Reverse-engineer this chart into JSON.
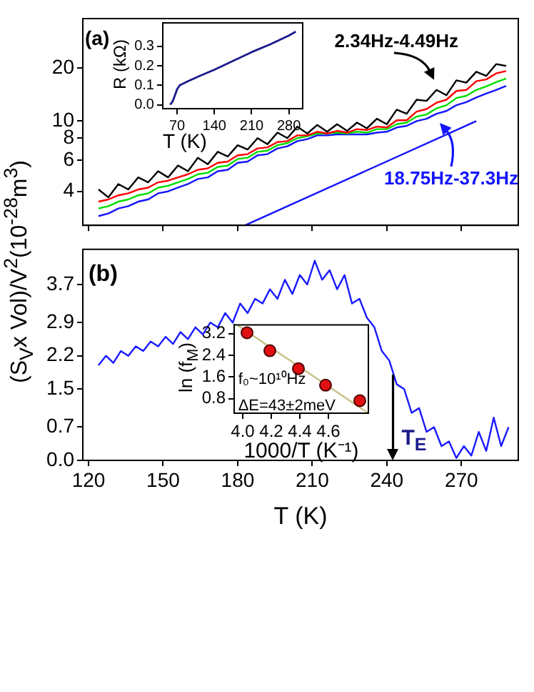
{
  "chart_data": [
    {
      "type": "line",
      "ylabel": "(S$_{V}$x Vol)/V$^{2}$(10$^{-28}$m$^{3}$)",
      "annotations": [
        "(a)"
      ],
      "xlim": [
        117.7,
        292.9
      ],
      "xticks": [
        120,
        150,
        180,
        210,
        240,
        270
      ],
      "ylim": [
        2.57,
        38
      ],
      "yticks": [
        4,
        6,
        8,
        10,
        20
      ],
      "log": "y",
      "tick_labels": "y",
      "x": [
        124,
        128,
        132,
        136,
        140,
        144,
        148,
        152,
        156,
        160,
        164,
        168,
        172,
        176,
        180,
        184,
        188,
        192,
        196,
        200,
        204,
        208,
        212,
        216,
        220,
        224,
        228,
        232,
        236,
        240,
        244,
        248,
        252,
        256,
        260,
        264,
        268,
        272,
        276,
        280,
        284,
        288
      ],
      "series": [
        {
          "name": "2.34Hz-4.49Hz",
          "color": "#000000",
          "values": [
            4.1,
            3.7,
            4.4,
            4.1,
            4.8,
            4.5,
            5.2,
            4.8,
            5.6,
            5.2,
            6.2,
            5.7,
            6.7,
            6.3,
            7.3,
            6.9,
            8.0,
            7.4,
            8.6,
            8.0,
            9.3,
            8.5,
            9.5,
            8.7,
            9.6,
            8.8,
            9.8,
            9.1,
            10.3,
            9.6,
            11.6,
            11.0,
            13.2,
            13.0,
            15.0,
            14.0,
            17.0,
            16.5,
            19.0,
            18.0,
            21.0,
            20.5
          ]
        },
        {
          "color": "#ff0000",
          "values": [
            3.5,
            3.6,
            3.8,
            3.9,
            4.1,
            4.2,
            4.5,
            4.6,
            4.8,
            5.0,
            5.3,
            5.4,
            5.8,
            5.9,
            6.4,
            6.5,
            7.0,
            7.1,
            7.6,
            7.7,
            8.3,
            8.3,
            8.7,
            8.5,
            8.8,
            8.6,
            9.0,
            8.9,
            9.3,
            9.2,
            10.1,
            10.1,
            11.3,
            11.7,
            12.7,
            13.2,
            14.8,
            15.0,
            16.8,
            17.2,
            18.6,
            19.2
          ]
        },
        {
          "color": "#00dd00",
          "values": [
            3.2,
            3.3,
            3.5,
            3.6,
            3.8,
            3.9,
            4.2,
            4.3,
            4.5,
            4.7,
            5.0,
            5.1,
            5.5,
            5.6,
            6.1,
            6.2,
            6.7,
            6.8,
            7.3,
            7.5,
            8.0,
            8.2,
            8.5,
            8.5,
            8.6,
            8.5,
            8.7,
            8.6,
            9.0,
            9.0,
            9.6,
            9.8,
            10.6,
            10.9,
            11.8,
            12.3,
            13.5,
            13.9,
            15.0,
            15.7,
            16.6,
            17.4
          ]
        },
        {
          "name": "18.75Hz-37.3Hz",
          "color": "#1414ff",
          "values": [
            2.9,
            3.0,
            3.2,
            3.3,
            3.5,
            3.6,
            3.9,
            4.0,
            4.2,
            4.4,
            4.7,
            4.8,
            5.2,
            5.3,
            5.8,
            5.9,
            6.4,
            6.5,
            7.0,
            7.2,
            7.7,
            7.9,
            8.3,
            8.3,
            8.4,
            8.4,
            8.4,
            8.4,
            8.6,
            8.7,
            9.2,
            9.4,
            10.0,
            10.3,
            11.0,
            11.4,
            12.3,
            12.8,
            13.6,
            14.3,
            15.0,
            15.8
          ]
        },
        {
          "color": "#1414ff",
          "x": [
            183,
            276
          ],
          "values": [
            2.57,
            10
          ]
        }
      ]
    },
    {
      "type": "line",
      "xlabel": "T (K)",
      "ylabel": "R (kΩ)",
      "xlim": [
        43,
        306
      ],
      "xticks": [
        70,
        140,
        210,
        280
      ],
      "ylim": [
        -0.02,
        0.42
      ],
      "yticks": [
        {
          "value": 0,
          "label": "0.0"
        },
        {
          "value": 0.1,
          "label": "0.1"
        },
        {
          "value": 0.2,
          "label": "0.2"
        },
        {
          "value": 0.3,
          "label": "0.3"
        }
      ],
      "x": [
        57,
        62,
        66,
        70,
        75,
        90,
        110,
        140,
        175,
        210,
        245,
        280,
        293
      ],
      "series": [
        {
          "color": "#1a1a8c",
          "values": [
            0,
            0.02,
            0.05,
            0.08,
            0.1,
            0.12,
            0.145,
            0.18,
            0.225,
            0.27,
            0.31,
            0.355,
            0.375
          ]
        }
      ]
    },
    {
      "type": "line",
      "xlabel": "T (K)",
      "annotations": [
        "(b)"
      ],
      "ref_lines": [
        {
          "axis": "x",
          "value": 242.5,
          "label": "T$_{E}$"
        }
      ],
      "xlim": [
        117.7,
        292.9
      ],
      "xticks": [
        120,
        150,
        180,
        210,
        240,
        270
      ],
      "ylim": [
        0,
        4.44
      ],
      "yticks": [
        {
          "value": 0,
          "label": "0.0"
        },
        0.7,
        1.5,
        2.2,
        2.9,
        3.7
      ],
      "x": [
        124,
        127,
        130,
        133,
        136,
        139,
        142,
        145,
        148,
        151,
        154,
        157,
        160,
        163,
        166,
        169,
        172,
        175,
        178,
        181,
        184,
        187,
        190,
        193,
        196,
        199,
        202,
        205,
        208,
        211,
        214,
        217,
        220,
        223,
        226,
        229,
        232,
        235,
        238,
        241,
        244,
        247,
        250,
        253,
        256,
        259,
        262,
        265,
        268,
        271,
        274,
        277,
        280,
        283,
        286,
        289
      ],
      "series": [
        {
          "color": "#1a1aff",
          "values": [
            2.0,
            2.2,
            2.05,
            2.3,
            2.2,
            2.4,
            2.3,
            2.5,
            2.4,
            2.6,
            2.45,
            2.7,
            2.55,
            2.8,
            2.65,
            2.9,
            2.8,
            3.1,
            2.9,
            3.3,
            3.1,
            3.4,
            3.3,
            3.6,
            3.4,
            3.8,
            3.5,
            3.9,
            3.7,
            4.2,
            3.8,
            4.0,
            3.6,
            3.9,
            3.3,
            3.4,
            3.0,
            2.8,
            2.3,
            2.1,
            1.6,
            1.5,
            1.0,
            1.1,
            0.6,
            0.7,
            0.3,
            0.4,
            0.05,
            0.3,
            0.1,
            0.6,
            0.2,
            0.9,
            0.3,
            0.7
          ]
        }
      ]
    },
    {
      "type": "scatter",
      "xlabel": "1000/T (K⁻¹)",
      "ylabel": "ln (f$_{M}$)",
      "annotations": [
        "f₀~10¹⁰Hz",
        "ΔE=43±2meV"
      ],
      "xlim": [
        3.94,
        4.88
      ],
      "xticks": [
        {
          "value": 4,
          "label": "4.0"
        },
        {
          "value": 4.2,
          "label": "4.2"
        },
        {
          "value": 4.4,
          "label": "4.4"
        },
        {
          "value": 4.6,
          "label": "4.6"
        }
      ],
      "ylim": [
        0.27,
        3.52
      ],
      "yticks": [
        0.8,
        1.6,
        2.4,
        3.2
      ],
      "series": [
        {
          "marker": "circle",
          "color": "#e01010",
          "x": [
            4.03,
            4.19,
            4.39,
            4.58,
            4.82
          ],
          "values": [
            3.23,
            2.57,
            1.91,
            1.3,
            0.73
          ]
        },
        {
          "type": "line",
          "color": "#c8c088",
          "x": [
            3.96,
            4.88
          ],
          "values": [
            3.52,
            0.27
          ]
        }
      ]
    }
  ]
}
